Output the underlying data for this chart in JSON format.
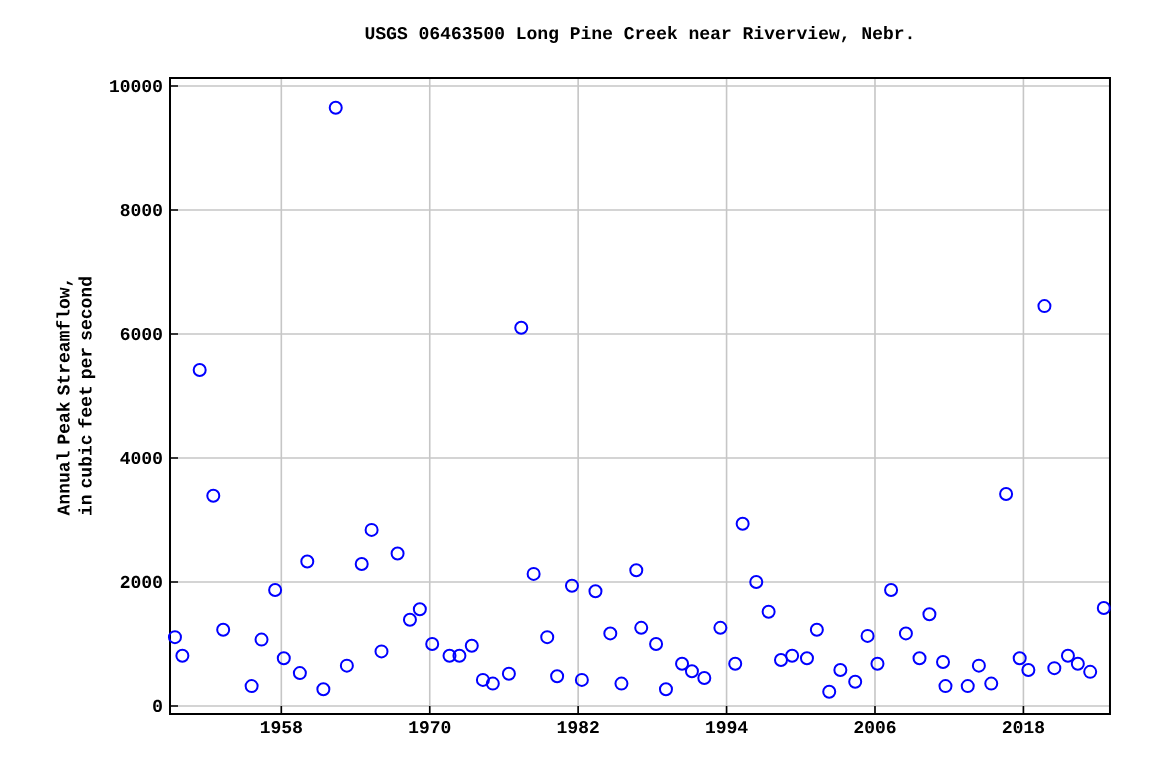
{
  "chart_data": {
    "type": "scatter",
    "title": "USGS 06463500 Long Pine Creek near Riverview, Nebr.",
    "ylabel": "Annual Peak Streamflow, in cubic feet per second",
    "xlim": [
      1949.0,
      2025.0
    ],
    "ylim": [
      -130,
      10130
    ],
    "xticks": [
      1958,
      1970,
      1982,
      1994,
      2006,
      2018
    ],
    "yticks": [
      0,
      2000,
      4000,
      6000,
      8000,
      10000
    ],
    "grid": true,
    "marker": "circle",
    "series": [
      {
        "color": "#0000ff",
        "x": [
          1949.4,
          1950.0,
          1951.4,
          1952.5,
          1953.3,
          1955.6,
          1956.4,
          1957.5,
          1958.2,
          1959.5,
          1960.1,
          1961.4,
          1962.4,
          1963.3,
          1964.5,
          1965.3,
          1966.1,
          1967.4,
          1968.4,
          1969.2,
          1970.2,
          1971.6,
          1972.4,
          1973.4,
          1974.3,
          1975.1,
          1976.4,
          1977.4,
          1978.4,
          1979.5,
          1980.3,
          1981.5,
          1982.3,
          1983.4,
          1984.6,
          1985.5,
          1986.7,
          1987.1,
          1988.3,
          1989.1,
          1990.4,
          1991.2,
          1992.2,
          1993.5,
          1994.7,
          1995.3,
          1996.4,
          1997.4,
          1998.4,
          1999.3,
          2000.5,
          2001.3,
          2002.3,
          2003.2,
          2004.4,
          2005.4,
          2006.2,
          2007.3,
          2008.5,
          2009.6,
          2010.4,
          2011.5,
          2011.7,
          2013.5,
          2014.4,
          2015.4,
          2016.6,
          2017.7,
          2018.4,
          2019.7,
          2020.5,
          2021.6,
          2022.4,
          2023.4,
          2024.5
        ],
        "values": [
          1110,
          810,
          5420,
          3390,
          1230,
          320,
          1070,
          1870,
          770,
          530,
          2330,
          270,
          9650,
          650,
          2290,
          2840,
          880,
          2460,
          1390,
          1560,
          1000,
          810,
          810,
          970,
          420,
          360,
          520,
          6100,
          2130,
          1110,
          480,
          1940,
          420,
          1850,
          1170,
          360,
          2190,
          1260,
          1000,
          270,
          680,
          560,
          450,
          1260,
          680,
          2940,
          2000,
          1520,
          740,
          810,
          770,
          1230,
          230,
          580,
          390,
          1130,
          680,
          1870,
          1170,
          770,
          1480,
          710,
          320,
          320,
          650,
          360,
          3420,
          770,
          580,
          6450,
          610,
          810,
          680,
          550,
          1580
        ]
      }
    ]
  }
}
